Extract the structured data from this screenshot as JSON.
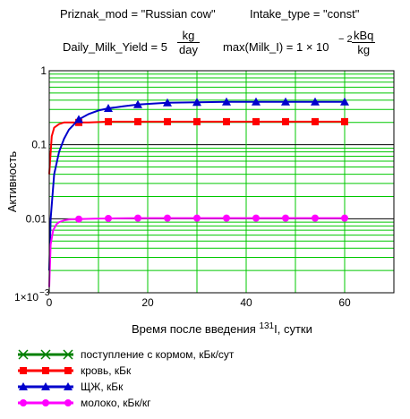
{
  "header": {
    "line1_left": "Priznak_mod = \"Russian cow\"",
    "line1_right": "Intake_type = \"const\"",
    "yield_prefix": "Daily_Milk_Yield = 5",
    "yield_num": "kg",
    "yield_den": "day",
    "max_prefix": "max(Milk_I) = 1 × 10",
    "max_exp": "− 2",
    "max_num": "kBq",
    "max_den": "kg"
  },
  "chart_data": {
    "type": "line",
    "y_scale": "log",
    "ylim": [
      0.001,
      1
    ],
    "xlim": [
      0,
      70
    ],
    "grid": true,
    "ylabel": "Активность",
    "xlabel_pre": "Время после введения ",
    "xlabel_sup": "131",
    "xlabel_post": "I, сутки",
    "x_ticks": [
      0,
      20,
      40,
      60
    ],
    "x_tick_labels": [
      "0",
      "20",
      "40",
      "60"
    ],
    "y_ticks": [
      0.001,
      0.01,
      0.1,
      1
    ],
    "y_tick_labels": [
      "1×10",
      "0.01",
      "0.1",
      "1"
    ],
    "y_tick_sup": "−3",
    "legend_position": "bottom-left",
    "series": [
      {
        "name": "поступление с кормом, кБк/сут",
        "color": "#008000",
        "marker": "x",
        "x": [],
        "y": []
      },
      {
        "name": "кровь, кБк",
        "color": "#ff0000",
        "marker": "square",
        "x": [
          0,
          0.5,
          1,
          2,
          3,
          4,
          6,
          8,
          12,
          18,
          24,
          30,
          36,
          42,
          48,
          54,
          60
        ],
        "y": [
          0.04,
          0.13,
          0.17,
          0.19,
          0.2,
          0.2,
          0.2,
          0.2,
          0.205,
          0.205,
          0.205,
          0.205,
          0.205,
          0.205,
          0.205,
          0.205,
          0.205
        ],
        "marker_x": [
          6,
          12,
          18,
          24,
          30,
          36,
          42,
          48,
          54,
          60
        ],
        "marker_y": [
          0.2,
          0.205,
          0.205,
          0.205,
          0.205,
          0.205,
          0.205,
          0.205,
          0.205,
          0.205
        ]
      },
      {
        "name": "ЩЖ, кБк",
        "color": "#0000cc",
        "marker": "triangle",
        "x": [
          0,
          0.3,
          1,
          2,
          3,
          4,
          6,
          8,
          10,
          12,
          15,
          18,
          24,
          30,
          36,
          42,
          48,
          54,
          60
        ],
        "y": [
          0.002,
          0.01,
          0.04,
          0.08,
          0.12,
          0.16,
          0.22,
          0.26,
          0.29,
          0.31,
          0.33,
          0.35,
          0.37,
          0.375,
          0.38,
          0.38,
          0.38,
          0.38,
          0.38
        ],
        "marker_x": [
          6,
          12,
          18,
          24,
          30,
          36,
          42,
          48,
          54,
          60
        ],
        "marker_y": [
          0.22,
          0.31,
          0.35,
          0.37,
          0.375,
          0.38,
          0.38,
          0.38,
          0.38,
          0.38
        ]
      },
      {
        "name": "молоко, кБк/кг",
        "color": "#ff00ff",
        "marker": "circle",
        "x": [
          0,
          0.3,
          0.8,
          1.5,
          2,
          3,
          4,
          6,
          9,
          12,
          18,
          24,
          30,
          36,
          42,
          48,
          54,
          60
        ],
        "y": [
          0.0012,
          0.0045,
          0.007,
          0.0085,
          0.009,
          0.0095,
          0.0098,
          0.0099,
          0.01,
          0.0101,
          0.0102,
          0.0102,
          0.0102,
          0.0102,
          0.0102,
          0.0102,
          0.0102,
          0.0102
        ],
        "marker_x": [
          6,
          12,
          18,
          24,
          30,
          36,
          42,
          48,
          54,
          60
        ],
        "marker_y": [
          0.0099,
          0.0101,
          0.0102,
          0.0102,
          0.0102,
          0.0102,
          0.0102,
          0.0102,
          0.0102,
          0.0102
        ]
      }
    ]
  }
}
